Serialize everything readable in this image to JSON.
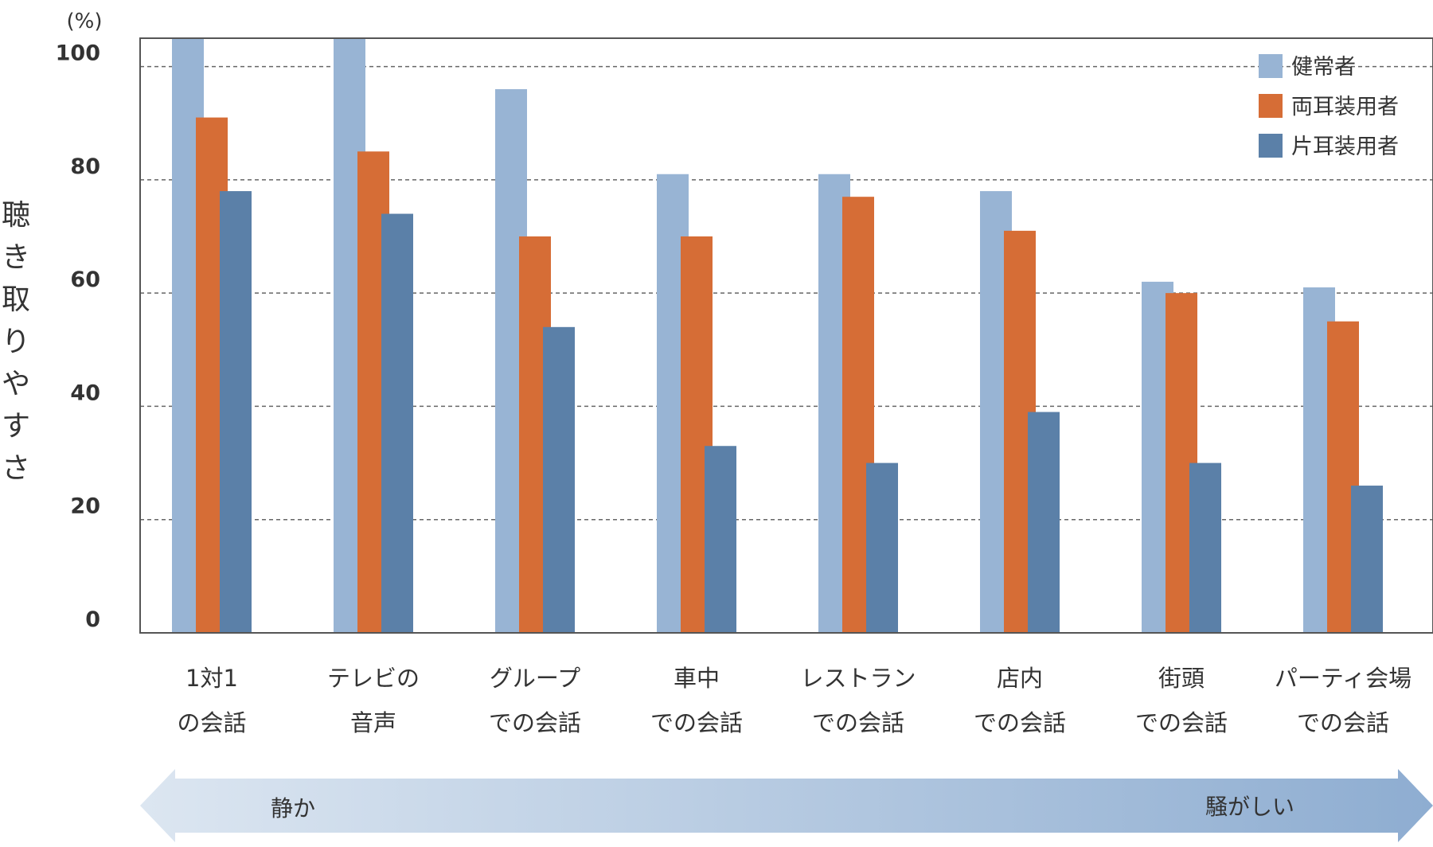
{
  "chart_data": {
    "type": "bar",
    "unit_label": "(%)",
    "ylabel": "聴き取りやすさ",
    "ylim": [
      0,
      105
    ],
    "yticks": [
      0,
      20,
      40,
      60,
      80,
      100
    ],
    "grid": "horizontal-dashed",
    "legend_position": "top-right",
    "categories": [
      [
        "1対1",
        "の会話"
      ],
      [
        "テレビの",
        "音声"
      ],
      [
        "グループ",
        "での会話"
      ],
      [
        "車中",
        "での会話"
      ],
      [
        "レストラン",
        "での会話"
      ],
      [
        "店内",
        "での会話"
      ],
      [
        "街頭",
        "での会話"
      ],
      [
        "パーティ会場",
        "での会話"
      ]
    ],
    "series": [
      {
        "name": "健常者",
        "color": "#98b4d4",
        "values": [
          105,
          105,
          96,
          81,
          81,
          78,
          62,
          61
        ]
      },
      {
        "name": "両耳装用者",
        "color": "#d66d36",
        "values": [
          91,
          85,
          70,
          70,
          77,
          71,
          60,
          55
        ]
      },
      {
        "name": "片耳装用者",
        "color": "#5b80a8",
        "values": [
          78,
          74,
          54,
          33,
          30,
          39,
          30,
          26
        ]
      }
    ],
    "arrow": {
      "left_label": "静か",
      "right_label": "騒がしい",
      "color_start": "#dce6f1",
      "color_end": "#8eadd1"
    }
  }
}
